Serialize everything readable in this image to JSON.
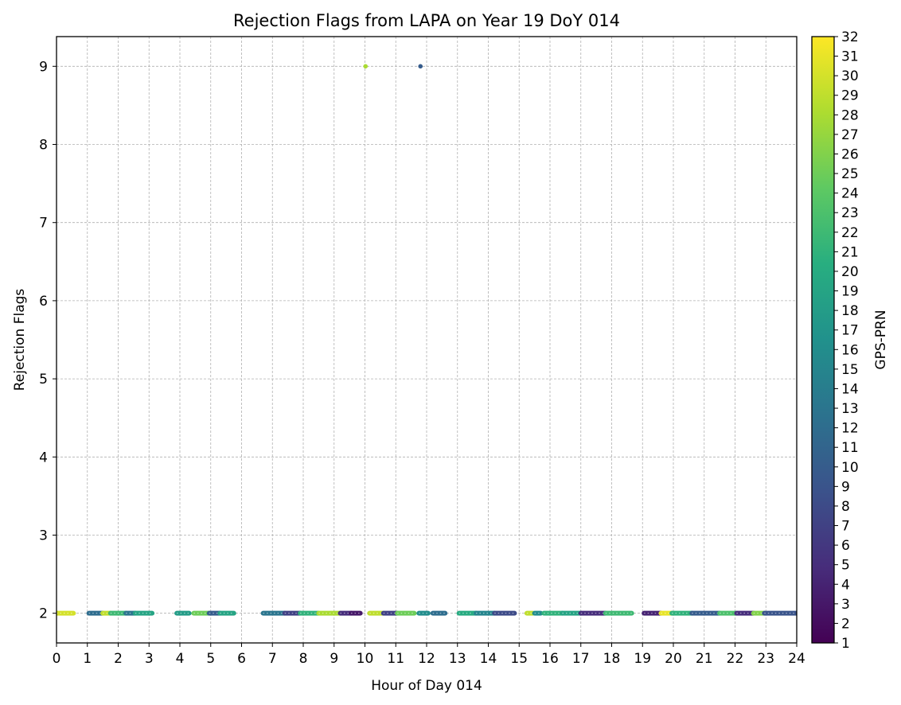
{
  "chart_data": {
    "type": "scatter",
    "title": "Rejection Flags from LAPA on Year 19 DoY 014",
    "xlabel": "Hour of Day 014",
    "ylabel": "Rejection Flags",
    "xlim": [
      0,
      24
    ],
    "ylim": [
      1.62,
      9.38
    ],
    "xticks": [
      0,
      1,
      2,
      3,
      4,
      5,
      6,
      7,
      8,
      9,
      10,
      11,
      12,
      13,
      14,
      15,
      16,
      17,
      18,
      19,
      20,
      21,
      22,
      23,
      24
    ],
    "yticks": [
      2,
      3,
      4,
      5,
      6,
      7,
      8,
      9
    ],
    "grid": true,
    "colorbar": {
      "label": "GPS-PRN",
      "min": 1,
      "max": 32,
      "ticks": [
        1,
        2,
        3,
        4,
        5,
        6,
        7,
        8,
        9,
        10,
        11,
        12,
        13,
        14,
        15,
        16,
        17,
        18,
        19,
        20,
        21,
        22,
        23,
        24,
        25,
        26,
        27,
        28,
        29,
        30,
        31,
        32
      ],
      "colormap": "viridis"
    },
    "segments": [
      {
        "x_start": 0.0,
        "x_end": 0.55,
        "y": 2,
        "prn": 30
      },
      {
        "x_start": 1.05,
        "x_end": 1.5,
        "y": 2,
        "prn": 12
      },
      {
        "x_start": 1.5,
        "x_end": 1.75,
        "y": 2,
        "prn": 29
      },
      {
        "x_start": 1.75,
        "x_end": 2.25,
        "y": 2,
        "prn": 22
      },
      {
        "x_start": 2.25,
        "x_end": 2.55,
        "y": 2,
        "prn": 13
      },
      {
        "x_start": 2.55,
        "x_end": 3.1,
        "y": 2,
        "prn": 19
      },
      {
        "x_start": 3.9,
        "x_end": 4.3,
        "y": 2,
        "prn": 18
      },
      {
        "x_start": 4.45,
        "x_end": 4.95,
        "y": 2,
        "prn": 25
      },
      {
        "x_start": 4.95,
        "x_end": 5.3,
        "y": 2,
        "prn": 10
      },
      {
        "x_start": 5.3,
        "x_end": 5.75,
        "y": 2,
        "prn": 19
      },
      {
        "x_start": 6.7,
        "x_end": 7.4,
        "y": 2,
        "prn": 13
      },
      {
        "x_start": 7.4,
        "x_end": 7.9,
        "y": 2,
        "prn": 7
      },
      {
        "x_start": 7.9,
        "x_end": 8.5,
        "y": 2,
        "prn": 21
      },
      {
        "x_start": 8.5,
        "x_end": 9.2,
        "y": 2,
        "prn": 28
      },
      {
        "x_start": 9.2,
        "x_end": 9.55,
        "y": 2,
        "prn": 5
      },
      {
        "x_start": 9.55,
        "x_end": 9.85,
        "y": 2,
        "prn": 3
      },
      {
        "x_start": 10.15,
        "x_end": 10.6,
        "y": 2,
        "prn": 29
      },
      {
        "x_start": 10.6,
        "x_end": 11.05,
        "y": 2,
        "prn": 7
      },
      {
        "x_start": 11.05,
        "x_end": 11.6,
        "y": 2,
        "prn": 25
      },
      {
        "x_start": 11.75,
        "x_end": 12.05,
        "y": 2,
        "prn": 16
      },
      {
        "x_start": 12.2,
        "x_end": 12.6,
        "y": 2,
        "prn": 12
      },
      {
        "x_start": 13.05,
        "x_end": 13.6,
        "y": 2,
        "prn": 20
      },
      {
        "x_start": 13.6,
        "x_end": 14.2,
        "y": 2,
        "prn": 15
      },
      {
        "x_start": 14.2,
        "x_end": 14.85,
        "y": 2,
        "prn": 8
      },
      {
        "x_start": 15.25,
        "x_end": 15.45,
        "y": 2,
        "prn": 29
      },
      {
        "x_start": 15.5,
        "x_end": 15.7,
        "y": 2,
        "prn": 16
      },
      {
        "x_start": 15.8,
        "x_end": 16.4,
        "y": 2,
        "prn": 21
      },
      {
        "x_start": 16.4,
        "x_end": 17.0,
        "y": 2,
        "prn": 19
      },
      {
        "x_start": 17.0,
        "x_end": 17.8,
        "y": 2,
        "prn": 5
      },
      {
        "x_start": 17.8,
        "x_end": 18.65,
        "y": 2,
        "prn": 22
      },
      {
        "x_start": 19.05,
        "x_end": 19.6,
        "y": 2,
        "prn": 4
      },
      {
        "x_start": 19.6,
        "x_end": 19.95,
        "y": 2,
        "prn": 31
      },
      {
        "x_start": 19.95,
        "x_end": 20.6,
        "y": 2,
        "prn": 21
      },
      {
        "x_start": 20.6,
        "x_end": 21.5,
        "y": 2,
        "prn": 10
      },
      {
        "x_start": 21.5,
        "x_end": 22.05,
        "y": 2,
        "prn": 23
      },
      {
        "x_start": 22.05,
        "x_end": 22.6,
        "y": 2,
        "prn": 5
      },
      {
        "x_start": 22.6,
        "x_end": 22.95,
        "y": 2,
        "prn": 26
      },
      {
        "x_start": 22.95,
        "x_end": 24.0,
        "y": 2,
        "prn": 9
      }
    ],
    "points": [
      {
        "x": 10.02,
        "y": 9,
        "prn": 28
      },
      {
        "x": 11.8,
        "y": 9,
        "prn": 10
      }
    ]
  }
}
